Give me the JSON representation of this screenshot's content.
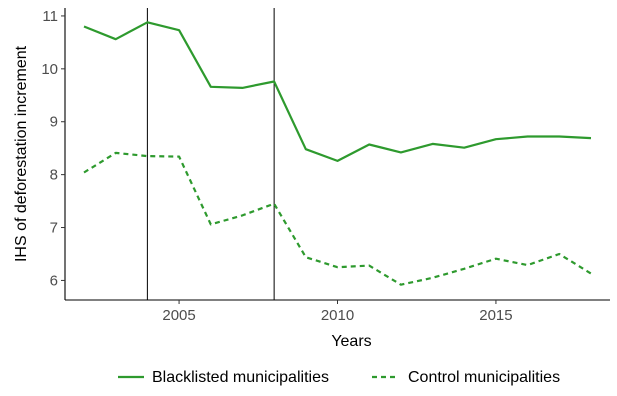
{
  "chart_data": {
    "type": "line",
    "xlabel": "Years",
    "ylabel": "IHS of deforestation increment",
    "xlim": [
      2001.4,
      2018.6
    ],
    "ylim": [
      5.63,
      11.15
    ],
    "x_ticks": [
      2005,
      2010,
      2015
    ],
    "y_ticks": [
      6,
      7,
      8,
      9,
      10,
      11
    ],
    "vertical_lines": [
      2004,
      2008
    ],
    "grid": false,
    "legend_position": "bottom",
    "x": [
      2002,
      2003,
      2004,
      2005,
      2006,
      2007,
      2008,
      2009,
      2010,
      2011,
      2012,
      2013,
      2014,
      2015,
      2016,
      2017,
      2018
    ],
    "series": [
      {
        "name": "Blacklisted municipalities",
        "style": "solid",
        "color": "#2e9a2e",
        "values": [
          10.8,
          10.56,
          10.88,
          10.73,
          9.66,
          9.64,
          9.76,
          8.48,
          8.26,
          8.57,
          8.42,
          8.58,
          8.51,
          8.67,
          8.72,
          8.72,
          8.69
        ]
      },
      {
        "name": "Control municipalities",
        "style": "dashed",
        "color": "#2e9a2e",
        "values": [
          8.04,
          8.41,
          8.35,
          8.34,
          7.06,
          7.23,
          7.45,
          6.44,
          6.25,
          6.28,
          5.92,
          6.05,
          6.22,
          6.41,
          6.29,
          6.5,
          6.13
        ]
      }
    ]
  }
}
